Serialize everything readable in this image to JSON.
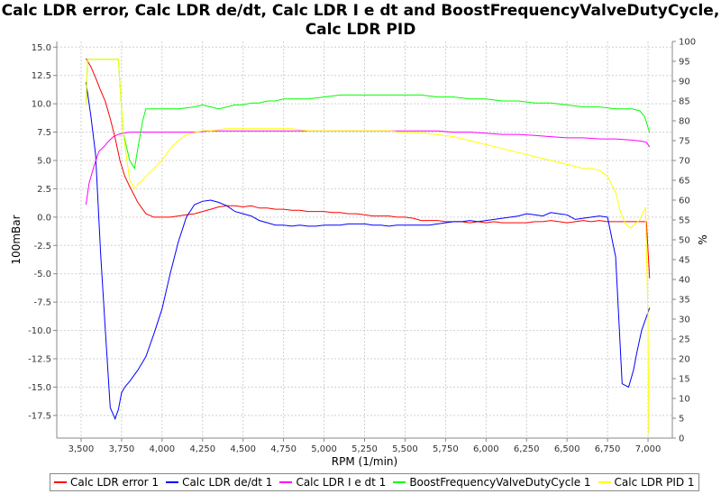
{
  "chart_data": {
    "type": "line",
    "title_line1": "Calc LDR error, Calc LDR de/dt, Calc LDR I e dt and BoostFrequencyValveDutyCycle,",
    "title_line2": "Calc LDR PID",
    "xlabel": "RPM (1/min)",
    "ylabel_left": "100mBar",
    "ylabel_right": "%",
    "xlim": [
      3350,
      7150
    ],
    "ylim_left": [
      -19.5,
      15.5
    ],
    "ylim_right": [
      0,
      100
    ],
    "x_ticks": [
      3500,
      3750,
      4000,
      4250,
      4500,
      4750,
      5000,
      5250,
      5500,
      5750,
      6000,
      6250,
      6500,
      6750,
      7000
    ],
    "x_tick_labels": [
      "3,500",
      "3,750",
      "4,000",
      "4,250",
      "4,500",
      "4,750",
      "5,000",
      "5,250",
      "5,500",
      "5,750",
      "6,000",
      "6,250",
      "6,500",
      "6,750",
      "7,000"
    ],
    "y_left_ticks": [
      15,
      12.5,
      10,
      7.5,
      5,
      2.5,
      0,
      -2.5,
      -5,
      -7.5,
      -10,
      -12.5,
      -15,
      -17.5
    ],
    "y_left_tick_labels": [
      "15.0",
      "12.5",
      "10.0",
      "7.5",
      "5.0",
      "2.5",
      "0.0",
      "-2.5",
      "-5.0",
      "-7.5",
      "-10.0",
      "-12.5",
      "-15.0",
      "-17.5"
    ],
    "y_right_ticks": [
      100,
      95,
      90,
      85,
      80,
      75,
      70,
      65,
      60,
      55,
      50,
      45,
      40,
      35,
      30,
      25,
      20,
      15,
      10,
      5,
      0
    ],
    "grid": true,
    "legend_position": "bottom",
    "series": [
      {
        "name": "Calc LDR error 1",
        "color": "#ff0000",
        "axis": "left",
        "x": [
          3530,
          3560,
          3590,
          3620,
          3650,
          3680,
          3710,
          3740,
          3770,
          3800,
          3850,
          3900,
          3950,
          4000,
          4050,
          4100,
          4150,
          4200,
          4250,
          4300,
          4350,
          4400,
          4450,
          4500,
          4550,
          4600,
          4650,
          4700,
          4750,
          4800,
          4850,
          4900,
          4950,
          5000,
          5050,
          5100,
          5150,
          5200,
          5250,
          5300,
          5350,
          5400,
          5450,
          5500,
          5550,
          5600,
          5650,
          5700,
          5750,
          5800,
          5850,
          5900,
          5950,
          6000,
          6050,
          6100,
          6150,
          6200,
          6250,
          6300,
          6350,
          6400,
          6450,
          6500,
          6550,
          6600,
          6650,
          6700,
          6750,
          6800,
          6850,
          6900,
          6950,
          6990,
          7010
        ],
        "y": [
          14,
          13.3,
          12.3,
          11.2,
          10.2,
          8.7,
          7,
          5,
          3.6,
          2.7,
          1.3,
          0.3,
          0,
          0,
          0,
          0.1,
          0.2,
          0.3,
          0.5,
          0.7,
          0.9,
          1,
          1,
          0.9,
          1,
          0.8,
          0.8,
          0.7,
          0.7,
          0.6,
          0.6,
          0.5,
          0.5,
          0.5,
          0.4,
          0.4,
          0.3,
          0.3,
          0.2,
          0.1,
          0.1,
          0.1,
          0,
          0,
          -0.1,
          -0.3,
          -0.3,
          -0.3,
          -0.4,
          -0.4,
          -0.4,
          -0.5,
          -0.4,
          -0.5,
          -0.4,
          -0.5,
          -0.5,
          -0.5,
          -0.5,
          -0.4,
          -0.4,
          -0.3,
          -0.4,
          -0.5,
          -0.4,
          -0.3,
          -0.4,
          -0.3,
          -0.4,
          -0.4,
          -0.4,
          -0.4,
          -0.4,
          -0.4,
          -5.4
        ]
      },
      {
        "name": "Calc LDR de/dt 1",
        "color": "#0000ff",
        "axis": "left",
        "x": [
          3530,
          3560,
          3590,
          3620,
          3650,
          3680,
          3710,
          3730,
          3750,
          3770,
          3800,
          3850,
          3900,
          3950,
          4000,
          4050,
          4100,
          4150,
          4200,
          4250,
          4300,
          4350,
          4400,
          4450,
          4500,
          4550,
          4600,
          4650,
          4700,
          4750,
          4800,
          4850,
          4900,
          4950,
          5000,
          5050,
          5100,
          5150,
          5200,
          5250,
          5300,
          5350,
          5400,
          5450,
          5500,
          5550,
          5600,
          5650,
          5700,
          5750,
          5800,
          5850,
          5900,
          5950,
          6000,
          6050,
          6100,
          6150,
          6200,
          6250,
          6300,
          6350,
          6400,
          6450,
          6500,
          6550,
          6600,
          6650,
          6700,
          6750,
          6800,
          6840,
          6880,
          6910,
          6930,
          6960,
          7010
        ],
        "y": [
          11.9,
          9,
          5.5,
          -3,
          -10,
          -16.8,
          -17.8,
          -17,
          -15.5,
          -15,
          -14.5,
          -13.5,
          -12.3,
          -10.3,
          -8.1,
          -5,
          -2.2,
          0,
          1.1,
          1.4,
          1.5,
          1.3,
          1,
          0.5,
          0.3,
          0.1,
          -0.3,
          -0.5,
          -0.7,
          -0.7,
          -0.8,
          -0.7,
          -0.8,
          -0.8,
          -0.7,
          -0.7,
          -0.7,
          -0.6,
          -0.6,
          -0.6,
          -0.7,
          -0.7,
          -0.8,
          -0.7,
          -0.7,
          -0.7,
          -0.7,
          -0.7,
          -0.6,
          -0.5,
          -0.4,
          -0.4,
          -0.3,
          -0.4,
          -0.3,
          -0.2,
          -0.1,
          0,
          0.1,
          0.3,
          0.2,
          0.1,
          0.4,
          0.3,
          0.2,
          -0.2,
          -0.1,
          0,
          0.1,
          0,
          -3.5,
          -14.7,
          -15,
          -13.5,
          -12,
          -10,
          -8
        ]
      },
      {
        "name": "Calc LDR I e dt 1",
        "color": "#ff00ff",
        "axis": "left",
        "x": [
          3530,
          3550,
          3580,
          3610,
          3640,
          3670,
          3700,
          3730,
          3760,
          3800,
          3850,
          3900,
          3950,
          4000,
          4100,
          4200,
          4300,
          4400,
          4500,
          4600,
          4700,
          4800,
          4900,
          5000,
          5100,
          5200,
          5300,
          5400,
          5500,
          5600,
          5700,
          5800,
          5900,
          6000,
          6100,
          6200,
          6300,
          6400,
          6500,
          6600,
          6700,
          6800,
          6900,
          6960,
          6990,
          7010
        ],
        "y": [
          1.1,
          3,
          4.5,
          5.8,
          6.2,
          6.7,
          7.1,
          7.3,
          7.4,
          7.5,
          7.5,
          7.5,
          7.5,
          7.5,
          7.5,
          7.5,
          7.6,
          7.6,
          7.6,
          7.6,
          7.6,
          7.6,
          7.6,
          7.6,
          7.6,
          7.6,
          7.6,
          7.6,
          7.6,
          7.6,
          7.6,
          7.5,
          7.5,
          7.4,
          7.3,
          7.3,
          7.2,
          7.1,
          7,
          7,
          6.9,
          6.9,
          6.8,
          6.7,
          6.6,
          6.2
        ]
      },
      {
        "name": "BoostFrequencyValveDutyCycle 1",
        "color": "#00ff00",
        "axis": "right",
        "x": [
          3530,
          3540,
          3600,
          3650,
          3700,
          3730,
          3760,
          3800,
          3830,
          3850,
          3880,
          3900,
          3950,
          4000,
          4100,
          4200,
          4250,
          4300,
          4350,
          4400,
          4450,
          4500,
          4550,
          4600,
          4650,
          4700,
          4750,
          4800,
          4850,
          4900,
          5000,
          5100,
          5200,
          5300,
          5400,
          5500,
          5600,
          5700,
          5800,
          5900,
          6000,
          6100,
          6200,
          6300,
          6400,
          6500,
          6600,
          6700,
          6800,
          6900,
          6950,
          6980,
          7010
        ],
        "y": [
          84,
          95.5,
          95.5,
          95.5,
          95.5,
          95.5,
          77,
          70,
          68,
          73,
          80,
          83,
          83,
          83,
          83,
          83.5,
          84,
          83.5,
          83,
          83.5,
          84,
          84,
          84.5,
          84.5,
          85,
          85,
          85.5,
          85.5,
          85.5,
          85.5,
          86,
          86.5,
          86.5,
          86.5,
          86.5,
          86.5,
          86.5,
          86,
          86,
          85.5,
          85.5,
          85,
          85,
          84.5,
          84.5,
          84,
          83.5,
          83.5,
          83,
          83,
          82.5,
          81,
          77
        ]
      },
      {
        "name": "Calc LDR PID 1",
        "color": "#ffff00",
        "axis": "right",
        "x": [
          3530,
          3540,
          3600,
          3650,
          3700,
          3730,
          3760,
          3800,
          3830,
          3850,
          3880,
          3900,
          3950,
          4000,
          4050,
          4100,
          4150,
          4200,
          4250,
          4300,
          4400,
          4500,
          4600,
          4700,
          4800,
          4900,
          5000,
          5100,
          5200,
          5300,
          5400,
          5500,
          5600,
          5700,
          5800,
          5900,
          6000,
          6100,
          6200,
          6300,
          6400,
          6500,
          6600,
          6650,
          6700,
          6750,
          6800,
          6830,
          6860,
          6890,
          6920,
          6950,
          6970,
          6985,
          7000,
          7005
        ],
        "y": [
          84,
          95.5,
          95.5,
          95.5,
          95.5,
          95.5,
          77,
          65,
          63,
          64,
          65,
          66,
          68,
          70,
          73,
          75,
          76.5,
          77,
          77.5,
          77.5,
          78,
          78,
          78,
          78,
          78,
          77.5,
          77.5,
          77.5,
          77.5,
          77.5,
          77.5,
          77,
          77,
          76.5,
          76,
          75,
          74,
          73,
          72,
          71,
          70,
          69,
          68,
          68,
          67.5,
          66,
          62,
          57,
          54,
          53,
          54,
          55,
          57,
          58,
          30,
          1
        ]
      }
    ]
  }
}
